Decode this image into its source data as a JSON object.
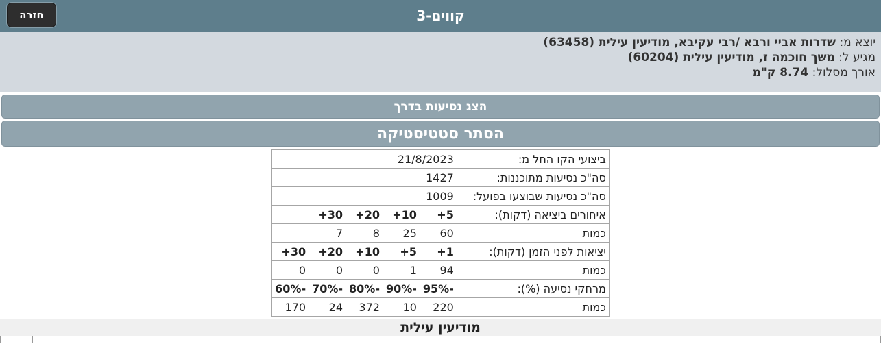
{
  "header": {
    "title": "קווים-3",
    "back_label": "חזרה"
  },
  "route_info": {
    "origin_prefix": "יוצא מ:",
    "origin_link": "שדרות אביי ורבא /רבי עקיבא, מודיעין עילית (63458)",
    "destination_prefix": "מגיע ל:",
    "destination_link": "משך חוכמה ז, מודיעין עילית (60204)",
    "length_prefix": "אורך מסלול:",
    "length_value": "8.74 ק\"מ"
  },
  "actions": {
    "show_trips_label": "הצג נסיעות בדרך",
    "hide_stats_label": "הסתר סטטיסטיקה"
  },
  "stats_table": {
    "rows": [
      {
        "label": "ביצועי הקו החל מ:",
        "cells": [
          {
            "text": "21/8/2023",
            "span": 5,
            "bold": false
          }
        ]
      },
      {
        "label": "סה\"כ נסיעות מתוכננות:",
        "cells": [
          {
            "text": "1427",
            "span": 5,
            "bold": false
          }
        ]
      },
      {
        "label": "סה\"כ נסיעות שבוצעו בפועל:",
        "cells": [
          {
            "text": "1009",
            "span": 5,
            "bold": false
          }
        ]
      },
      {
        "label": "איחורים ביציאה (דקות):",
        "cells": [
          {
            "text": "+5",
            "span": 1,
            "bold": true
          },
          {
            "text": "+10",
            "span": 1,
            "bold": true
          },
          {
            "text": "+20",
            "span": 1,
            "bold": true
          },
          {
            "text": "+30",
            "span": 2,
            "bold": true
          }
        ]
      },
      {
        "label": "כמות",
        "cells": [
          {
            "text": "60",
            "span": 1,
            "bold": false
          },
          {
            "text": "25",
            "span": 1,
            "bold": false
          },
          {
            "text": "8",
            "span": 1,
            "bold": false
          },
          {
            "text": "7",
            "span": 2,
            "bold": false
          }
        ]
      },
      {
        "label": "יציאות לפני הזמן (דקות):",
        "cells": [
          {
            "text": "+1",
            "span": 1,
            "bold": true
          },
          {
            "text": "+5",
            "span": 1,
            "bold": true
          },
          {
            "text": "+10",
            "span": 1,
            "bold": true
          },
          {
            "text": "+20",
            "span": 1,
            "bold": true
          },
          {
            "text": "+30",
            "span": 1,
            "bold": true
          }
        ]
      },
      {
        "label": "כמות",
        "cells": [
          {
            "text": "94",
            "span": 1,
            "bold": false
          },
          {
            "text": "1",
            "span": 1,
            "bold": false
          },
          {
            "text": "0",
            "span": 1,
            "bold": false
          },
          {
            "text": "0",
            "span": 1,
            "bold": false
          },
          {
            "text": "0",
            "span": 1,
            "bold": false
          }
        ]
      },
      {
        "label": "מרחקי נסיעה (%):",
        "cells": [
          {
            "text": "95%-",
            "span": 1,
            "bold": true
          },
          {
            "text": "90%-",
            "span": 1,
            "bold": true
          },
          {
            "text": "80%-",
            "span": 1,
            "bold": true
          },
          {
            "text": "70%-",
            "span": 1,
            "bold": true
          },
          {
            "text": "60%-",
            "span": 1,
            "bold": true
          }
        ]
      },
      {
        "label": "כמות",
        "cells": [
          {
            "text": "220",
            "span": 1,
            "bold": false
          },
          {
            "text": "10",
            "span": 1,
            "bold": false
          },
          {
            "text": "372",
            "span": 1,
            "bold": false
          },
          {
            "text": "24",
            "span": 1,
            "bold": false
          },
          {
            "text": "170",
            "span": 1,
            "bold": false
          }
        ]
      }
    ]
  },
  "footer": {
    "area_title": "מודיעין עילית"
  },
  "colors": {
    "topbar": "#5e7e8c",
    "info_band": "#d3d9df",
    "button": "#91a4ae",
    "back_button": "#2e2e2e",
    "footer_band": "#f0f0f0",
    "table_border": "#a6a6a6"
  }
}
